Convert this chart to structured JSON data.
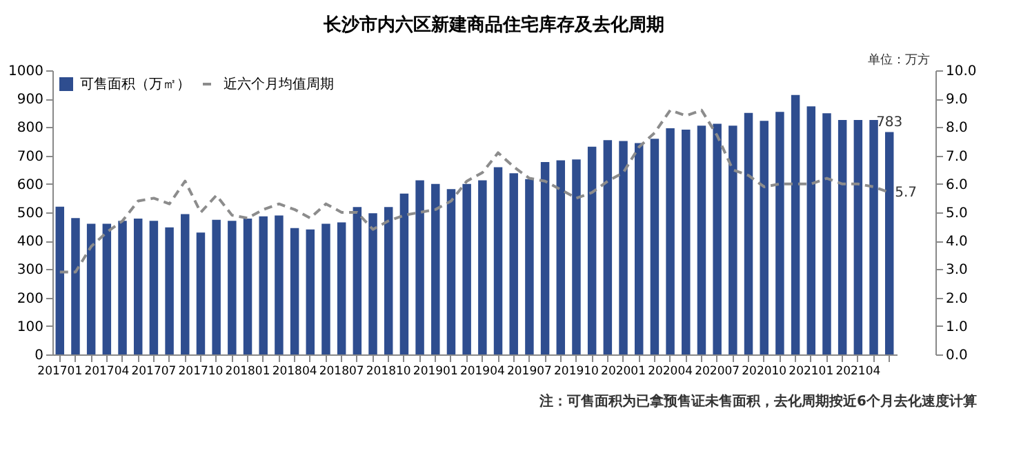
{
  "chart_data": {
    "type": "bar",
    "title": "长沙市内六区新建商品住宅库存及去化周期",
    "categories": [
      "201701",
      null,
      null,
      "201704",
      null,
      null,
      "201707",
      null,
      null,
      "201710",
      null,
      null,
      "201801",
      null,
      null,
      "201804",
      null,
      null,
      "201807",
      null,
      null,
      "201810",
      null,
      null,
      "201901",
      null,
      null,
      "201904",
      null,
      null,
      "201907",
      null,
      null,
      "201910",
      null,
      null,
      "202001",
      null,
      null,
      "202004",
      null,
      null,
      "202007",
      null,
      null,
      "202010",
      null,
      null,
      "202101",
      null,
      null,
      "202104",
      null,
      null
    ],
    "series": [
      {
        "name": "可售面积（万㎡）",
        "color": "#2e4d8f",
        "values": [
          520,
          480,
          460,
          460,
          470,
          478,
          470,
          447,
          494,
          429,
          474,
          470,
          478,
          486,
          489,
          445,
          440,
          460,
          465,
          519,
          497,
          519,
          566,
          613,
          600,
          582,
          600,
          613,
          659,
          638,
          617,
          677,
          683,
          686,
          731,
          754,
          751,
          744,
          759,
          796,
          791,
          805,
          812,
          805,
          850,
          822,
          854,
          913,
          873,
          849,
          825,
          825,
          825,
          783
        ],
        "value_labels": [
          null,
          null,
          null,
          null,
          null,
          null,
          null,
          null,
          null,
          null,
          null,
          null,
          null,
          null,
          null,
          null,
          null,
          null,
          null,
          null,
          null,
          null,
          null,
          null,
          null,
          null,
          null,
          null,
          null,
          null,
          null,
          null,
          null,
          null,
          null,
          null,
          null,
          null,
          null,
          null,
          null,
          null,
          null,
          null,
          null,
          null,
          null,
          null,
          null,
          null,
          null,
          null,
          null,
          "783"
        ]
      },
      {
        "name": "近六个月均值周期",
        "type": "line",
        "axis": "y2",
        "color": "#8c8c8c",
        "line_style": "dashed",
        "values": [
          2.9,
          2.9,
          3.8,
          4.3,
          4.7,
          5.4,
          5.5,
          5.3,
          6.1,
          5.0,
          5.6,
          4.9,
          4.8,
          5.1,
          5.3,
          5.1,
          4.8,
          5.3,
          5.0,
          5.0,
          4.4,
          4.7,
          4.9,
          5.0,
          5.1,
          5.4,
          6.1,
          6.4,
          7.1,
          6.6,
          6.2,
          6.1,
          5.8,
          5.5,
          5.7,
          6.1,
          6.4,
          7.3,
          7.8,
          8.6,
          8.4,
          8.6,
          7.7,
          6.5,
          6.3,
          5.9,
          6.0,
          6.0,
          6.0,
          6.2,
          6.0,
          6.0,
          5.9,
          5.7
        ],
        "value_labels": [
          null,
          null,
          null,
          null,
          null,
          null,
          null,
          null,
          null,
          null,
          null,
          null,
          null,
          null,
          null,
          null,
          null,
          null,
          null,
          null,
          null,
          null,
          null,
          null,
          null,
          null,
          null,
          null,
          null,
          null,
          null,
          null,
          null,
          null,
          null,
          null,
          null,
          null,
          null,
          null,
          null,
          null,
          null,
          null,
          null,
          null,
          null,
          null,
          null,
          null,
          null,
          null,
          null,
          "5.7"
        ]
      }
    ],
    "ylim": [
      0,
      1000
    ],
    "yticks": [
      0,
      100,
      200,
      300,
      400,
      500,
      600,
      700,
      800,
      900,
      1000
    ],
    "y2lim": [
      0,
      10
    ],
    "y2ticks": [
      {
        "value": 0,
        "label": "0.0"
      },
      {
        "value": 1,
        "label": "1.0"
      },
      {
        "value": 2,
        "label": "2.0"
      },
      {
        "value": 3,
        "label": "3.0"
      },
      {
        "value": 4,
        "label": "4.0"
      },
      {
        "value": 5,
        "label": "5.0"
      },
      {
        "value": 6,
        "label": "6.0"
      },
      {
        "value": 7,
        "label": "7.0"
      },
      {
        "value": 8,
        "label": "8.0"
      },
      {
        "value": 9,
        "label": "9.0"
      },
      {
        "value": 10,
        "label": "10.0"
      }
    ],
    "legend": "top left",
    "grid": false,
    "annotations": [
      "单位：万方",
      "注：可售面积为已拿预售证未售面积，去化周期按近6个月去化速度计算"
    ]
  }
}
